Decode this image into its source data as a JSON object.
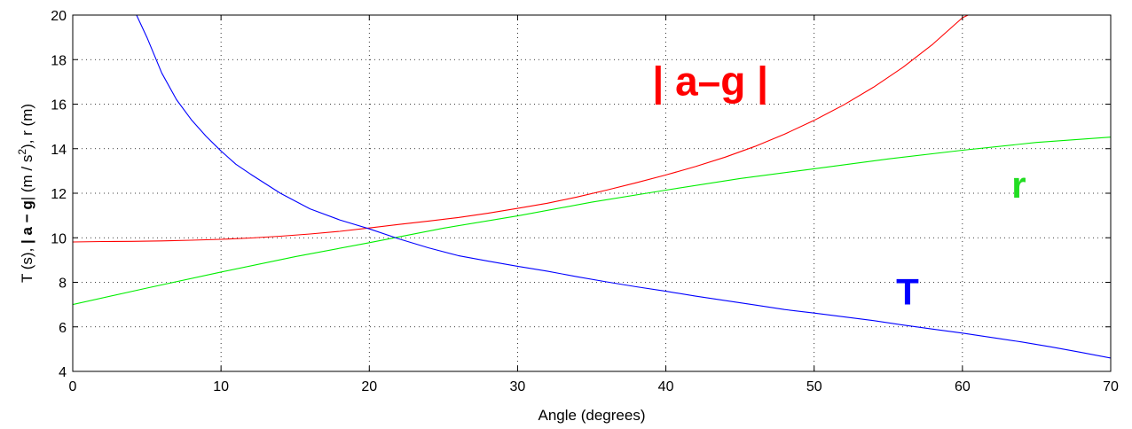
{
  "chart_data": {
    "type": "line",
    "title": "",
    "xlabel": "Angle (degrees)",
    "ylabel": {
      "pre": "T (s),  ",
      "bold": "| a − g",
      "post1": "| (m / s",
      "sup": "2",
      "post2": "), r (m)"
    },
    "xlim": [
      0,
      70
    ],
    "ylim": [
      4,
      20
    ],
    "xticks": [
      0,
      10,
      20,
      30,
      40,
      50,
      60,
      70
    ],
    "yticks": [
      4,
      6,
      8,
      10,
      12,
      14,
      16,
      18,
      20
    ],
    "grid": true,
    "series": [
      {
        "name": "| a–g |",
        "color": "#ff0000",
        "x": [
          0,
          2,
          4,
          6,
          8,
          10,
          12,
          14,
          16,
          18,
          20,
          22,
          24,
          26,
          28,
          30,
          32,
          34,
          36,
          38,
          40,
          42,
          44,
          46,
          48,
          50,
          52,
          54,
          56,
          58,
          60,
          61
        ],
        "y": [
          9.81,
          9.83,
          9.84,
          9.86,
          9.89,
          9.93,
          9.99,
          10.07,
          10.17,
          10.29,
          10.44,
          10.6,
          10.75,
          10.91,
          11.1,
          11.32,
          11.55,
          11.83,
          12.14,
          12.47,
          12.82,
          13.2,
          13.62,
          14.1,
          14.65,
          15.27,
          15.97,
          16.76,
          17.66,
          18.69,
          19.88,
          20.2
        ]
      },
      {
        "name": "r",
        "color": "#00ee00",
        "x": [
          0,
          5,
          10,
          15,
          20,
          25,
          30,
          35,
          40,
          45,
          50,
          55,
          60,
          65,
          70
        ],
        "y": [
          7.0,
          7.74,
          8.46,
          9.15,
          9.78,
          10.43,
          10.98,
          11.6,
          12.14,
          12.66,
          13.1,
          13.54,
          13.93,
          14.28,
          14.52
        ]
      },
      {
        "name": "T",
        "color": "#0000ff",
        "x": [
          4.3,
          5,
          6,
          7,
          8,
          9,
          10,
          11,
          12,
          14,
          16,
          18,
          20,
          22,
          24,
          26,
          28,
          30,
          32,
          34,
          36,
          38,
          40,
          42,
          44,
          46,
          48,
          50,
          52,
          54,
          56,
          58,
          60,
          62,
          64,
          66,
          68,
          70
        ],
        "y": [
          20.0,
          19.0,
          17.4,
          16.2,
          15.3,
          14.55,
          13.9,
          13.3,
          12.85,
          12.0,
          11.3,
          10.8,
          10.4,
          9.95,
          9.55,
          9.2,
          8.95,
          8.72,
          8.5,
          8.25,
          8.02,
          7.8,
          7.6,
          7.38,
          7.18,
          6.98,
          6.78,
          6.62,
          6.45,
          6.28,
          6.08,
          5.9,
          5.72,
          5.52,
          5.32,
          5.1,
          4.85,
          4.6
        ]
      }
    ],
    "annotations": [
      {
        "series": "| a–g |",
        "text": "| a–g |",
        "x": 43,
        "y": 16.4,
        "color": "#ff0000",
        "size": "large"
      },
      {
        "series": "r",
        "text": "r",
        "x": 63.8,
        "y": 11.8,
        "color": "#22dd22",
        "size": "medium"
      },
      {
        "series": "T",
        "text": "T",
        "x": 56.3,
        "y": 7.0,
        "color": "#0000ff",
        "size": "medium"
      }
    ]
  }
}
